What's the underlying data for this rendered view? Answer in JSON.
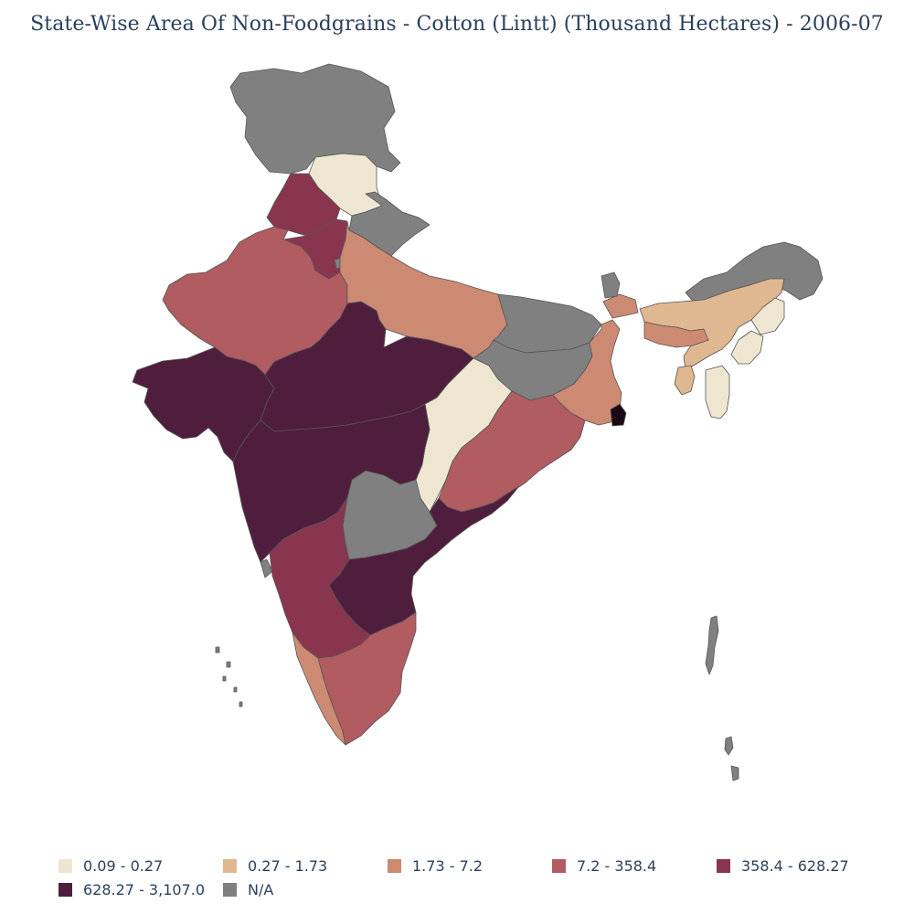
{
  "title": "State-Wise Area Of Non-Foodgrains - Cotton (Lintt) (Thousand Hectares) - 2006-07",
  "legend": [
    {
      "label": "0.09 - 0.27",
      "color": "#efe6d2"
    },
    {
      "label": "0.27 - 1.73",
      "color": "#dfb790"
    },
    {
      "label": "1.73 - 7.2",
      "color": "#cd8a73"
    },
    {
      "label": "7.2 - 358.4",
      "color": "#b05c61"
    },
    {
      "label": "358.4 - 628.27",
      "color": "#8a3550"
    },
    {
      "label": "628.27 - 3,107.0",
      "color": "#501e3d"
    },
    {
      "label": "N/A",
      "color": "#808080"
    }
  ],
  "regions": [
    {
      "id": "jammu-kashmir",
      "class": "N/A"
    },
    {
      "id": "himachal-pradesh",
      "class": "0.09 - 0.27"
    },
    {
      "id": "punjab",
      "class": "358.4 - 628.27"
    },
    {
      "id": "haryana",
      "class": "358.4 - 628.27"
    },
    {
      "id": "delhi",
      "class": "N/A"
    },
    {
      "id": "uttarakhand",
      "class": "N/A"
    },
    {
      "id": "rajasthan",
      "class": "7.2 - 358.4"
    },
    {
      "id": "uttar-pradesh",
      "class": "1.73 - 7.2"
    },
    {
      "id": "bihar",
      "class": "N/A"
    },
    {
      "id": "jharkhand",
      "class": "N/A"
    },
    {
      "id": "west-bengal",
      "class": "1.73 - 7.2"
    },
    {
      "id": "sikkim",
      "class": "N/A"
    },
    {
      "id": "gujarat",
      "class": "628.27 - 3,107.0"
    },
    {
      "id": "madhya-pradesh",
      "class": "628.27 - 3,107.0"
    },
    {
      "id": "chhattisgarh",
      "class": "0.09 - 0.27"
    },
    {
      "id": "odisha",
      "class": "7.2 - 358.4"
    },
    {
      "id": "maharashtra",
      "class": "628.27 - 3,107.0"
    },
    {
      "id": "telangana",
      "class": "N/A"
    },
    {
      "id": "andhra-pradesh",
      "class": "628.27 - 3,107.0"
    },
    {
      "id": "goa",
      "class": "N/A"
    },
    {
      "id": "karnataka",
      "class": "358.4 - 628.27"
    },
    {
      "id": "kerala",
      "class": "1.73 - 7.2"
    },
    {
      "id": "tamil-nadu",
      "class": "7.2 - 358.4"
    },
    {
      "id": "arunachal-pradesh",
      "class": "N/A"
    },
    {
      "id": "assam",
      "class": "0.27 - 1.73"
    },
    {
      "id": "meghalaya",
      "class": "1.73 - 7.2"
    },
    {
      "id": "nagaland",
      "class": "0.09 - 0.27"
    },
    {
      "id": "manipur",
      "class": "0.09 - 0.27"
    },
    {
      "id": "mizoram",
      "class": "0.09 - 0.27"
    },
    {
      "id": "tripura",
      "class": "0.27 - 1.73"
    },
    {
      "id": "andaman-nicobar",
      "class": "N/A"
    },
    {
      "id": "lakshadweep",
      "class": "N/A"
    }
  ]
}
